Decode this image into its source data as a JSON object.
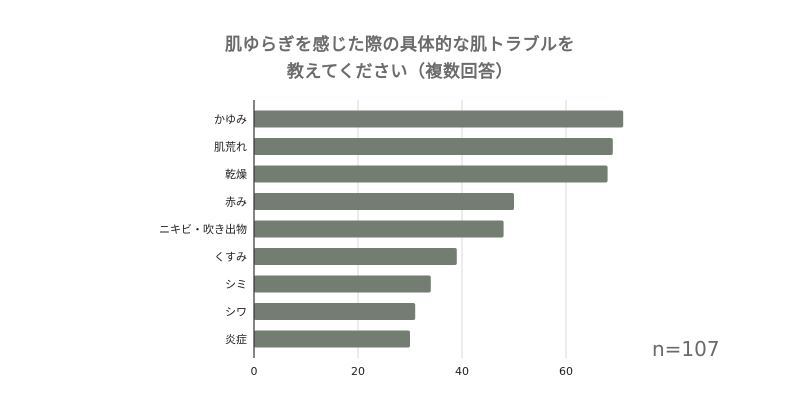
{
  "title_lines": [
    "肌ゆらぎを感じた際の具体的な肌トラブルを",
    "教えてください（複数回答）"
  ],
  "sample_size": "n=107",
  "colors": {
    "bar": "#747d72",
    "grid": "#d9d9d9",
    "axis": "#333333",
    "label": "#222222",
    "title": "#6b6b6b"
  },
  "chart_data": {
    "type": "bar",
    "orientation": "horizontal",
    "title": "肌ゆらぎを感じた際の具体的な肌トラブルを教えてください（複数回答）",
    "categories": [
      "かゆみ",
      "肌荒れ",
      "乾燥",
      "赤み",
      "ニキビ・吹き出物",
      "くすみ",
      "シミ",
      "シワ",
      "炎症"
    ],
    "values": [
      71,
      69,
      68,
      50,
      48,
      39,
      34,
      31,
      30
    ],
    "xlim": [
      0,
      70
    ],
    "xticks": [
      0,
      20,
      40,
      60
    ],
    "xlabel": "",
    "ylabel": "",
    "grid": "vertical",
    "legend": "none"
  }
}
